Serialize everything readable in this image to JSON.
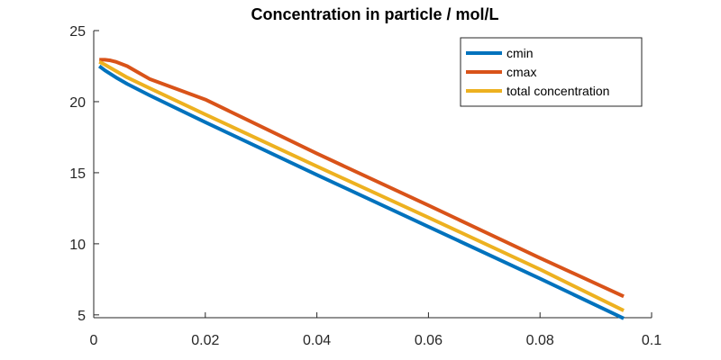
{
  "chart_data": {
    "type": "line",
    "title": "Concentration in particle / mol/L",
    "xlabel": "",
    "ylabel": "",
    "xlim": [
      0,
      0.1
    ],
    "ylim": [
      4.8,
      25
    ],
    "x_ticks": [
      0,
      0.02,
      0.04,
      0.06,
      0.08,
      0.1
    ],
    "x_tick_labels": [
      "0",
      "0.02",
      "0.04",
      "0.06",
      "0.08",
      "0.1"
    ],
    "y_ticks": [
      5,
      10,
      15,
      20,
      25
    ],
    "y_tick_labels": [
      "5",
      "10",
      "15",
      "20",
      "25"
    ],
    "grid": false,
    "legend_position": "top-right",
    "series": [
      {
        "name": "cmin",
        "color": "#0072BD",
        "x": [
          0.001,
          0.002,
          0.004,
          0.006,
          0.01,
          0.02,
          0.04,
          0.06,
          0.08,
          0.095
        ],
        "y": [
          22.5,
          22.2,
          21.7,
          21.25,
          20.45,
          18.55,
          14.85,
          11.2,
          7.55,
          4.75
        ]
      },
      {
        "name": "cmax",
        "color": "#D95319",
        "x": [
          0.001,
          0.002,
          0.003,
          0.004,
          0.006,
          0.008,
          0.01,
          0.02,
          0.04,
          0.06,
          0.08,
          0.095
        ],
        "y": [
          22.95,
          22.95,
          22.9,
          22.8,
          22.5,
          22.05,
          21.6,
          20.15,
          16.35,
          12.7,
          9.0,
          6.3
        ]
      },
      {
        "name": "total concentration",
        "color": "#EDB120",
        "x": [
          0.001,
          0.002,
          0.004,
          0.006,
          0.01,
          0.02,
          0.04,
          0.06,
          0.08,
          0.095
        ],
        "y": [
          22.8,
          22.6,
          22.15,
          21.7,
          20.95,
          19.1,
          15.45,
          11.85,
          8.2,
          5.3
        ]
      }
    ]
  }
}
